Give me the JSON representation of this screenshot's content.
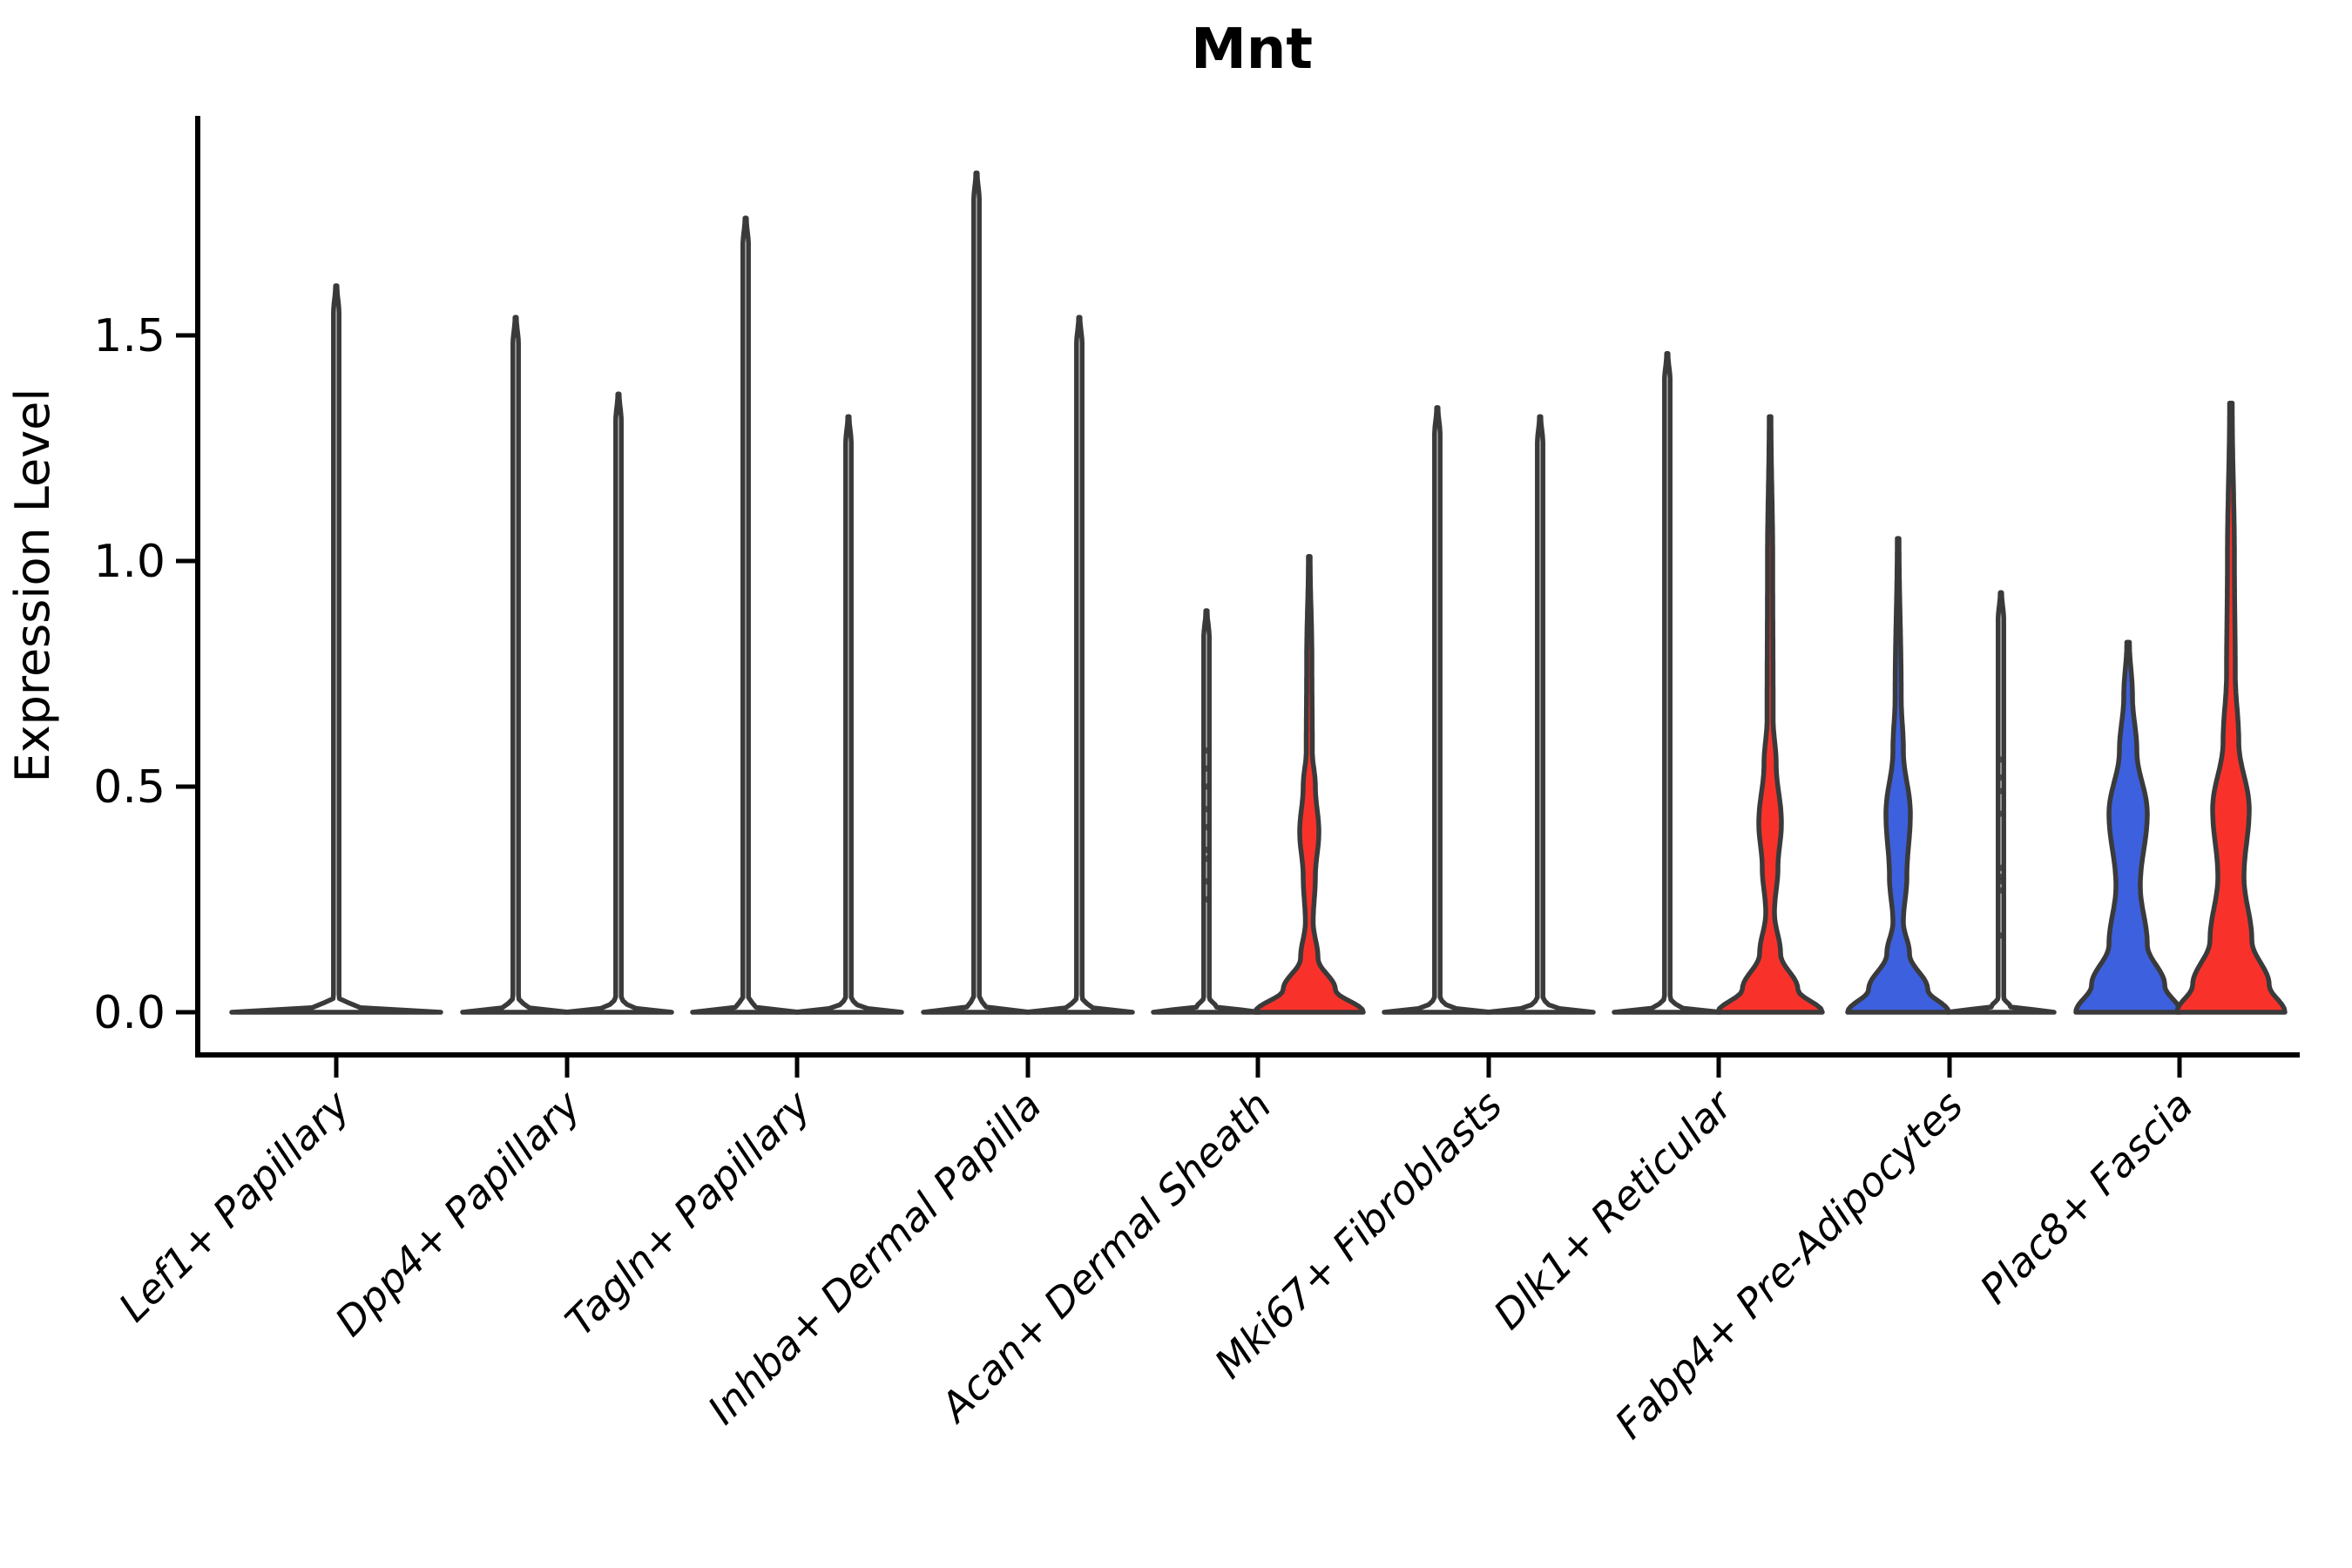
{
  "title": "Mnt",
  "y_axis": {
    "label": "Expression Level",
    "ticks": [
      "0.0",
      "0.5",
      "1.0",
      "1.5"
    ],
    "tick_values": [
      0.0,
      0.5,
      1.0,
      1.5
    ]
  },
  "categories": [
    "Lef1+ Papillary",
    "Dpp4+ Papillary",
    "Tagln+ Papillary",
    "Inhba+ Dermal Papilla",
    "Acan+ Dermal Sheath",
    "Mki67+ Fibroblasts",
    "Dlk1+ Reticular",
    "Fabp4+ Pre-Adipocytes",
    "Plac8+ Fascia"
  ],
  "colors": {
    "blue": "#3D60DE",
    "red": "#F8322B",
    "edge": "#3A3A3A",
    "axis": "#000000",
    "background": "#FFFFFF",
    "white_fill": "#FFFFFF"
  },
  "chart_data": {
    "type": "violin",
    "title": "Mnt",
    "xlabel": "",
    "ylabel": "Expression Level",
    "ylim": [
      -0.09,
      1.99
    ],
    "ytick_values": [
      0.0,
      0.5,
      1.0,
      1.5
    ],
    "grid": false,
    "legend": "none",
    "categories": [
      {
        "name": "Lef1+ Papillary",
        "violins": [
          {
            "side": "full",
            "kind": "spike",
            "fill": "white_fill",
            "max_expression": 1.61,
            "dots": []
          }
        ]
      },
      {
        "name": "Dpp4+ Papillary",
        "violins": [
          {
            "side": "left",
            "kind": "spike",
            "fill": "white_fill",
            "max_expression": 1.54,
            "dots": []
          },
          {
            "side": "right",
            "kind": "spike",
            "fill": "white_fill",
            "max_expression": 1.37,
            "dots": []
          }
        ]
      },
      {
        "name": "Tagln+ Papillary",
        "violins": [
          {
            "side": "left",
            "kind": "spike",
            "fill": "white_fill",
            "max_expression": 1.76,
            "dots": []
          },
          {
            "side": "right",
            "kind": "spike",
            "fill": "white_fill",
            "max_expression": 1.32,
            "dots": []
          }
        ]
      },
      {
        "name": "Inhba+ Dermal Papilla",
        "violins": [
          {
            "side": "left",
            "kind": "spike",
            "fill": "white_fill",
            "max_expression": 1.86,
            "dots": []
          },
          {
            "side": "right",
            "kind": "spike",
            "fill": "white_fill",
            "max_expression": 1.54,
            "dots": []
          }
        ]
      },
      {
        "name": "Acan+ Dermal Sheath",
        "violins": [
          {
            "side": "left",
            "kind": "spike",
            "fill": "white_fill",
            "max_expression": 0.89,
            "dots": [
              0.58,
              0.54,
              0.5,
              0.45,
              0.41,
              0.36,
              0.34,
              0.29,
              0.25
            ]
          },
          {
            "side": "right",
            "kind": "shaped",
            "fill": "red",
            "max_expression": 1.01,
            "bulge_center": 0.4,
            "profile": [
              [
                0,
                62
              ],
              [
                0.05,
                30
              ],
              [
                0.12,
                10
              ],
              [
                0.2,
                4.5
              ],
              [
                0.3,
                7
              ],
              [
                0.4,
                11
              ],
              [
                0.5,
                7
              ],
              [
                0.58,
                3.5
              ],
              [
                0.78,
                3
              ],
              [
                1.01,
                1
              ]
            ],
            "dots": []
          }
        ]
      },
      {
        "name": "Mki67+ Fibroblasts",
        "violins": [
          {
            "side": "left",
            "kind": "spike",
            "fill": "white_fill",
            "max_expression": 1.34,
            "dots": []
          },
          {
            "side": "right",
            "kind": "spike",
            "fill": "white_fill",
            "max_expression": 1.32,
            "dots": []
          }
        ]
      },
      {
        "name": "Dlk1+ Reticular",
        "violins": [
          {
            "side": "left",
            "kind": "spike",
            "fill": "white_fill",
            "max_expression": 1.46,
            "dots": []
          },
          {
            "side": "right",
            "kind": "shaped",
            "fill": "red",
            "max_expression": 1.32,
            "bulge_center": 0.42,
            "profile": [
              [
                0,
                60
              ],
              [
                0.05,
                32
              ],
              [
                0.13,
                12
              ],
              [
                0.22,
                5
              ],
              [
                0.32,
                9
              ],
              [
                0.42,
                13
              ],
              [
                0.55,
                7
              ],
              [
                0.65,
                3.5
              ],
              [
                1.0,
                3
              ],
              [
                1.32,
                1
              ]
            ],
            "dots": []
          }
        ]
      },
      {
        "name": "Fabp4+ Pre-Adipocytes",
        "violins": [
          {
            "side": "left",
            "kind": "shaped",
            "fill": "blue",
            "max_expression": 1.05,
            "bulge_center": 0.44,
            "profile": [
              [
                0,
                58
              ],
              [
                0.05,
                34
              ],
              [
                0.13,
                13
              ],
              [
                0.2,
                6
              ],
              [
                0.3,
                10
              ],
              [
                0.44,
                14
              ],
              [
                0.58,
                6
              ],
              [
                0.7,
                3.5
              ],
              [
                1.05,
                1
              ]
            ],
            "dots": []
          },
          {
            "side": "right",
            "kind": "spike",
            "fill": "white_fill",
            "max_expression": 0.93,
            "dots": [
              0.56,
              0.52,
              0.49,
              0.44,
              0.32,
              0.3,
              0.29,
              0.27,
              0.17
            ]
          }
        ]
      },
      {
        "name": "Plac8+ Fascia",
        "violins": [
          {
            "side": "left",
            "kind": "shaped",
            "fill": "blue",
            "max_expression": 0.82,
            "bulge_center": 0.44,
            "profile": [
              [
                0,
                60
              ],
              [
                0.06,
                42
              ],
              [
                0.15,
                22
              ],
              [
                0.28,
                14
              ],
              [
                0.44,
                22
              ],
              [
                0.58,
                10
              ],
              [
                0.7,
                5
              ],
              [
                0.82,
                1.5
              ]
            ],
            "dots": []
          },
          {
            "side": "right",
            "kind": "shaped",
            "fill": "red",
            "max_expression": 1.35,
            "bulge_center": 0.45,
            "profile": [
              [
                0,
                62
              ],
              [
                0.06,
                44
              ],
              [
                0.16,
                24
              ],
              [
                0.3,
                15
              ],
              [
                0.45,
                21
              ],
              [
                0.6,
                9
              ],
              [
                0.75,
                5
              ],
              [
                1.0,
                4
              ],
              [
                1.35,
                1.5
              ]
            ],
            "dots": []
          }
        ]
      }
    ]
  }
}
